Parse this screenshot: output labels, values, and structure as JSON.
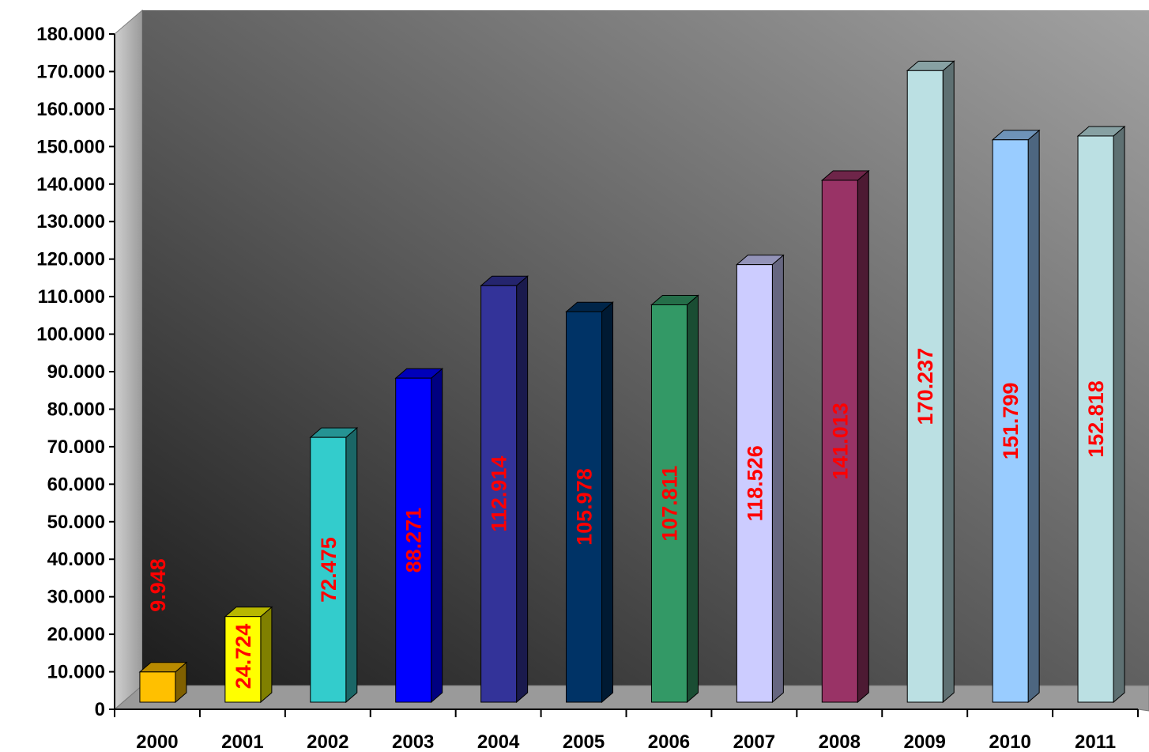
{
  "chart_data": {
    "type": "bar",
    "style": "3d-column",
    "categories": [
      "2000",
      "2001",
      "2002",
      "2003",
      "2004",
      "2005",
      "2006",
      "2007",
      "2008",
      "2009",
      "2010",
      "2011"
    ],
    "values": [
      9948,
      24724,
      72475,
      88271,
      112914,
      105978,
      107811,
      118526,
      141013,
      170237,
      151799,
      152818
    ],
    "data_labels": [
      "9.948",
      "24.724",
      "72.475",
      "88.271",
      "112.914",
      "105.978",
      "107.811",
      "118.526",
      "141.013",
      "170.237",
      "151.799",
      "152.818"
    ],
    "bar_colors": [
      "#FFC000",
      "#FFFF00",
      "#33CCCC",
      "#0000FF",
      "#333399",
      "#003366",
      "#339966",
      "#CCCCFF",
      "#993366",
      "#BBE0E3",
      "#99CCFF",
      "#BBE0E3"
    ],
    "y_ticks": [
      "0",
      "10.000",
      "20.000",
      "30.000",
      "40.000",
      "50.000",
      "60.000",
      "70.000",
      "80.000",
      "90.000",
      "100.000",
      "110.000",
      "120.000",
      "130.000",
      "140.000",
      "150.000",
      "160.000",
      "170.000",
      "180.000"
    ],
    "ylim": [
      0,
      180000
    ],
    "y_tick_step": 10000,
    "data_label_color": "#FF0000",
    "data_label_orientation": "vertical",
    "background": "gray-gradient-3d",
    "title": "",
    "xlabel": "",
    "ylabel": ""
  }
}
